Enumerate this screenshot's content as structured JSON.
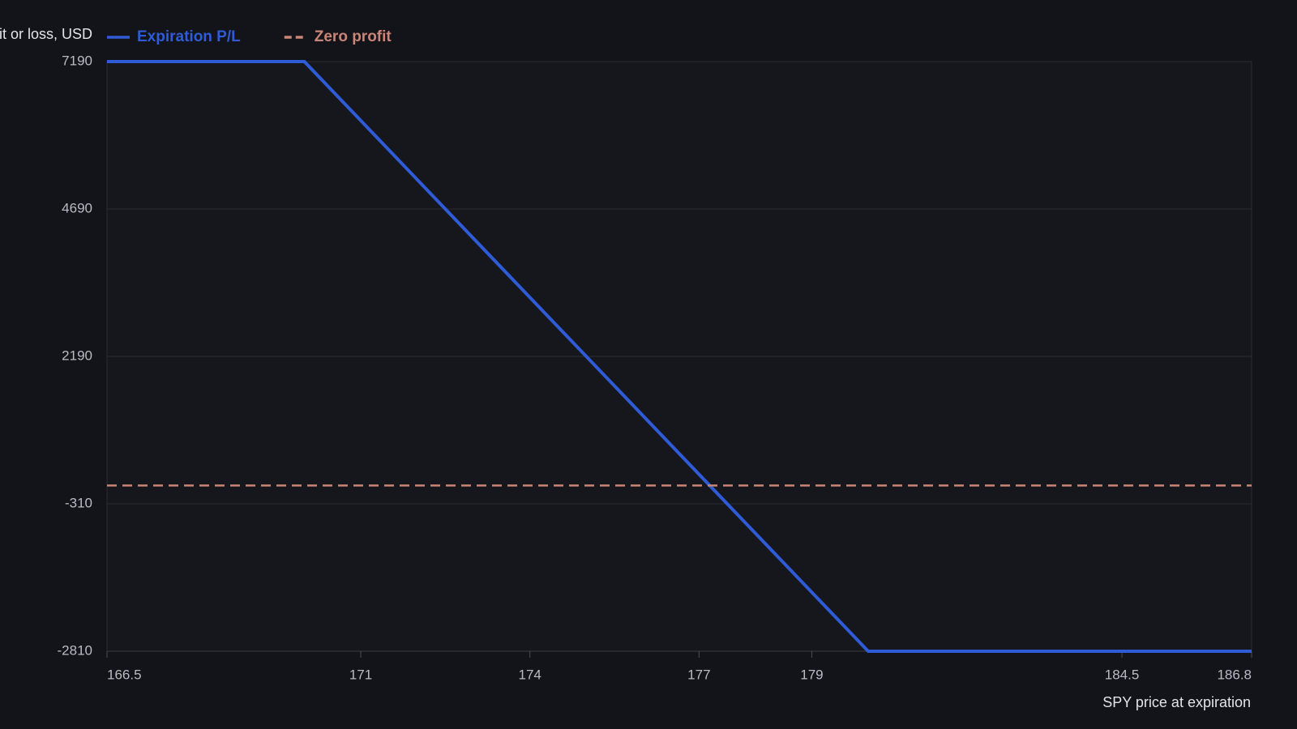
{
  "chart_data": {
    "type": "line",
    "y_label": "Profit or loss, USD",
    "x_label": "SPY price at expiration",
    "series": [
      {
        "name": "Expiration P/L",
        "color": "#2f5bd6",
        "dash": false,
        "x": [
          166.5,
          170,
          180,
          186.8
        ],
        "values": [
          7190,
          7190,
          -2810,
          -2810
        ]
      },
      {
        "name": "Zero profit",
        "color": "#c98576",
        "dash": true,
        "x": [
          166.5,
          186.8
        ],
        "values": [
          0,
          0
        ]
      }
    ],
    "xlim": [
      166.5,
      186.8
    ],
    "xticks": [
      166.5,
      171,
      174,
      177,
      179,
      184.5,
      186.8
    ],
    "ylim": [
      -2810,
      7190
    ],
    "yticks": [
      7190,
      4690,
      2190,
      -310,
      -2810
    ],
    "grid": true
  }
}
